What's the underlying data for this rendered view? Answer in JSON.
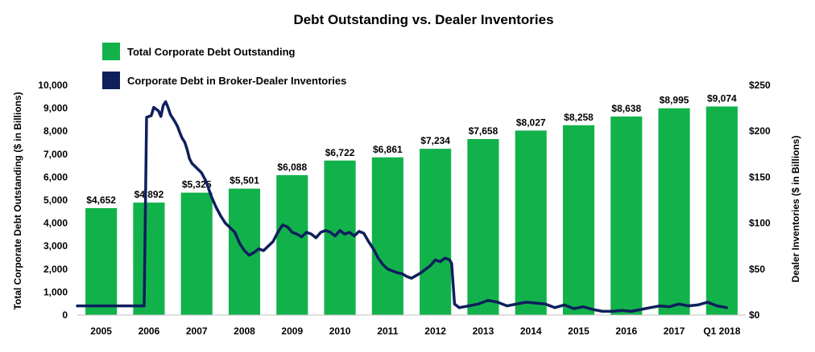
{
  "chart_data": {
    "type": "bar",
    "title": "Debt Outstanding vs. Dealer Inventories",
    "categories": [
      "2005",
      "2006",
      "2007",
      "2008",
      "2009",
      "2010",
      "2011",
      "2012",
      "2013",
      "2014",
      "2015",
      "2016",
      "2017",
      "Q1 2018"
    ],
    "series": [
      {
        "name": "Total Corporate Debt Outstanding",
        "type": "bar",
        "axis": "left",
        "color": "#12B24B",
        "values": [
          4652,
          4892,
          5325,
          5501,
          6088,
          6722,
          6861,
          7234,
          7658,
          8027,
          8258,
          8638,
          8995,
          9074
        ],
        "labels": [
          "$4,652",
          "$4,892",
          "$5,325",
          "$5,501",
          "$6,088",
          "$6,722",
          "$6,861",
          "$7,234",
          "$7,658",
          "$8,027",
          "$8,258",
          "$8,638",
          "$8,995",
          "$9,074"
        ]
      },
      {
        "name": "Corporate Debt in Broker-Dealer Inventories",
        "type": "line",
        "axis": "right",
        "color": "#0E1F5B",
        "x": [
          2005.0,
          2005.5,
          2006.0,
          2006.4,
          2006.45,
          2006.55,
          2006.6,
          2006.7,
          2006.75,
          2006.8,
          2006.85,
          2006.9,
          2006.95,
          2007.0,
          2007.05,
          2007.1,
          2007.15,
          2007.2,
          2007.25,
          2007.3,
          2007.35,
          2007.4,
          2007.5,
          2007.6,
          2007.7,
          2007.8,
          2007.9,
          2008.0,
          2008.1,
          2008.2,
          2008.3,
          2008.4,
          2008.5,
          2008.6,
          2008.7,
          2008.8,
          2008.9,
          2009.0,
          2009.1,
          2009.2,
          2009.3,
          2009.4,
          2009.5,
          2009.6,
          2009.7,
          2009.8,
          2009.9,
          2010.0,
          2010.1,
          2010.2,
          2010.3,
          2010.4,
          2010.5,
          2010.6,
          2010.7,
          2010.8,
          2010.9,
          2011.0,
          2011.1,
          2011.2,
          2011.3,
          2011.4,
          2011.5,
          2011.6,
          2011.7,
          2011.8,
          2011.9,
          2012.0,
          2012.1,
          2012.2,
          2012.3,
          2012.4,
          2012.5,
          2012.6,
          2012.7,
          2012.8,
          2012.84,
          2012.9,
          2013.0,
          2013.2,
          2013.4,
          2013.6,
          2013.8,
          2014.0,
          2014.2,
          2014.4,
          2014.6,
          2014.8,
          2015.0,
          2015.2,
          2015.4,
          2015.6,
          2015.8,
          2016.0,
          2016.2,
          2016.4,
          2016.6,
          2016.8,
          2017.0,
          2017.2,
          2017.4,
          2017.6,
          2017.8,
          2018.0,
          2018.2,
          2018.4,
          2018.6
        ],
        "values": [
          10,
          10,
          10,
          10,
          215,
          217,
          226,
          222,
          216,
          228,
          232,
          226,
          218,
          214,
          210,
          205,
          198,
          192,
          188,
          180,
          170,
          165,
          160,
          155,
          145,
          130,
          118,
          108,
          100,
          95,
          90,
          78,
          70,
          65,
          68,
          72,
          70,
          75,
          80,
          90,
          98,
          96,
          90,
          88,
          85,
          90,
          88,
          84,
          90,
          92,
          90,
          86,
          92,
          88,
          90,
          86,
          91,
          89,
          80,
          72,
          62,
          55,
          50,
          48,
          46,
          45,
          42,
          40,
          43,
          46,
          50,
          54,
          60,
          58,
          62,
          60,
          56,
          12,
          8,
          10,
          12,
          16,
          14,
          10,
          12,
          14,
          13,
          12,
          8,
          11,
          7,
          9,
          6,
          4,
          4,
          5,
          4,
          6,
          8,
          10,
          9,
          12,
          10,
          11,
          14,
          10,
          8
        ]
      }
    ],
    "y_left": {
      "label": "Total Corporate Debt Outstanding ($ in Billions)",
      "ylim": [
        0,
        10000
      ],
      "ticks": [
        "0",
        "1,000",
        "2,000",
        "3,000",
        "4,000",
        "5,000",
        "6,000",
        "7,000",
        "8,000",
        "9,000",
        "10,000"
      ]
    },
    "y_right": {
      "label": "Dealer Inventories ($ in Billions)",
      "ylim": [
        0,
        250
      ],
      "ticks": [
        "$0",
        "$50",
        "$100",
        "$150",
        "$200",
        "$250"
      ]
    },
    "grid": false,
    "legend_position": "top-left"
  }
}
